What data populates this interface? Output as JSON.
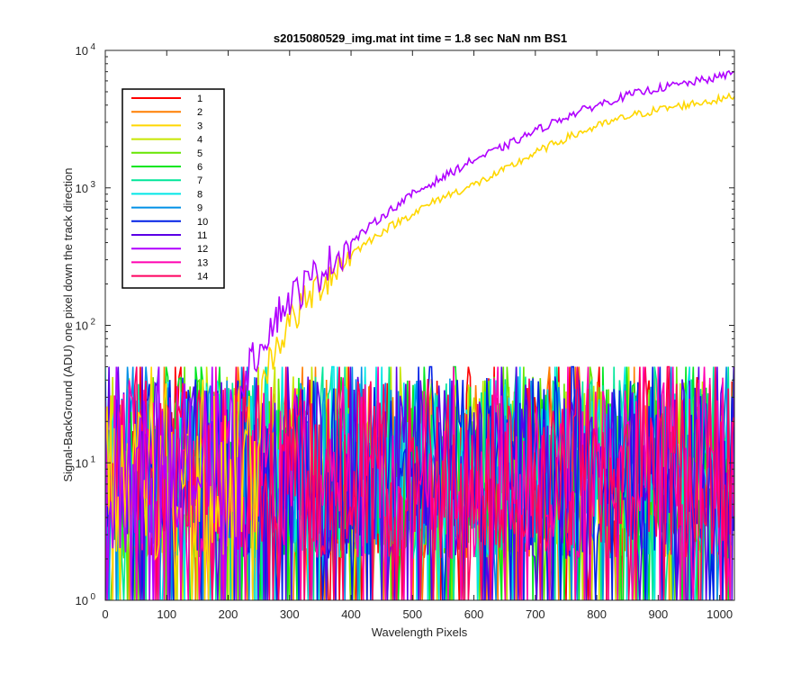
{
  "chart_data": {
    "type": "line",
    "title": "s2015080529_img.mat int time = 1.8 sec  NaN nm BS1",
    "xlabel": "Wavelength Pixels",
    "ylabel": "Signal-BackGround (ADU) one pixel down the track direction",
    "xlim": [
      0,
      1024
    ],
    "ylim": [
      1,
      10000
    ],
    "yscale": "log",
    "grid": false,
    "legend_position": "top-left",
    "x_ticks": [
      "0",
      "100",
      "200",
      "300",
      "400",
      "500",
      "600",
      "700",
      "800",
      "900",
      "1000"
    ],
    "y_ticks": [
      {
        "base": "10",
        "exp": "0"
      },
      {
        "base": "10",
        "exp": "1"
      },
      {
        "base": "10",
        "exp": "2"
      },
      {
        "base": "10",
        "exp": "3"
      },
      {
        "base": "10",
        "exp": "4"
      }
    ],
    "noise_band": {
      "min": 1,
      "typical": 10,
      "max": 50
    },
    "series": [
      {
        "name": "1",
        "color": "#ff0000",
        "kind": "noise"
      },
      {
        "name": "2",
        "color": "#ff7f00",
        "kind": "noise"
      },
      {
        "name": "3",
        "color": "#ffd700",
        "kind": "signal",
        "points": [
          [
            255,
            35
          ],
          [
            270,
            60
          ],
          [
            300,
            105
          ],
          [
            350,
            200
          ],
          [
            400,
            330
          ],
          [
            450,
            480
          ],
          [
            500,
            650
          ],
          [
            550,
            860
          ],
          [
            600,
            1050
          ],
          [
            650,
            1350
          ],
          [
            700,
            1800
          ],
          [
            750,
            2300
          ],
          [
            800,
            2800
          ],
          [
            850,
            3300
          ],
          [
            900,
            3700
          ],
          [
            950,
            4050
          ],
          [
            1000,
            4400
          ],
          [
            1024,
            4600
          ]
        ]
      },
      {
        "name": "4",
        "color": "#c8e600",
        "kind": "noise"
      },
      {
        "name": "5",
        "color": "#66e600",
        "kind": "noise"
      },
      {
        "name": "6",
        "color": "#00e620",
        "kind": "noise"
      },
      {
        "name": "7",
        "color": "#00e699",
        "kind": "noise"
      },
      {
        "name": "8",
        "color": "#00e6e6",
        "kind": "noise"
      },
      {
        "name": "9",
        "color": "#0090e6",
        "kind": "noise"
      },
      {
        "name": "10",
        "color": "#0020e6",
        "kind": "noise"
      },
      {
        "name": "11",
        "color": "#5a00e6",
        "kind": "noise"
      },
      {
        "name": "12",
        "color": "#b000ff",
        "kind": "signal",
        "points": [
          [
            220,
            35
          ],
          [
            240,
            55
          ],
          [
            260,
            85
          ],
          [
            280,
            120
          ],
          [
            300,
            155
          ],
          [
            350,
            245
          ],
          [
            400,
            400
          ],
          [
            450,
            620
          ],
          [
            500,
            900
          ],
          [
            550,
            1200
          ],
          [
            600,
            1600
          ],
          [
            650,
            2000
          ],
          [
            700,
            2600
          ],
          [
            750,
            3300
          ],
          [
            800,
            4000
          ],
          [
            850,
            4700
          ],
          [
            900,
            5300
          ],
          [
            950,
            5800
          ],
          [
            1000,
            6400
          ],
          [
            1024,
            7000
          ]
        ]
      },
      {
        "name": "13",
        "color": "#ff00b0",
        "kind": "noise"
      },
      {
        "name": "14",
        "color": "#ff0060",
        "kind": "noise"
      }
    ]
  }
}
